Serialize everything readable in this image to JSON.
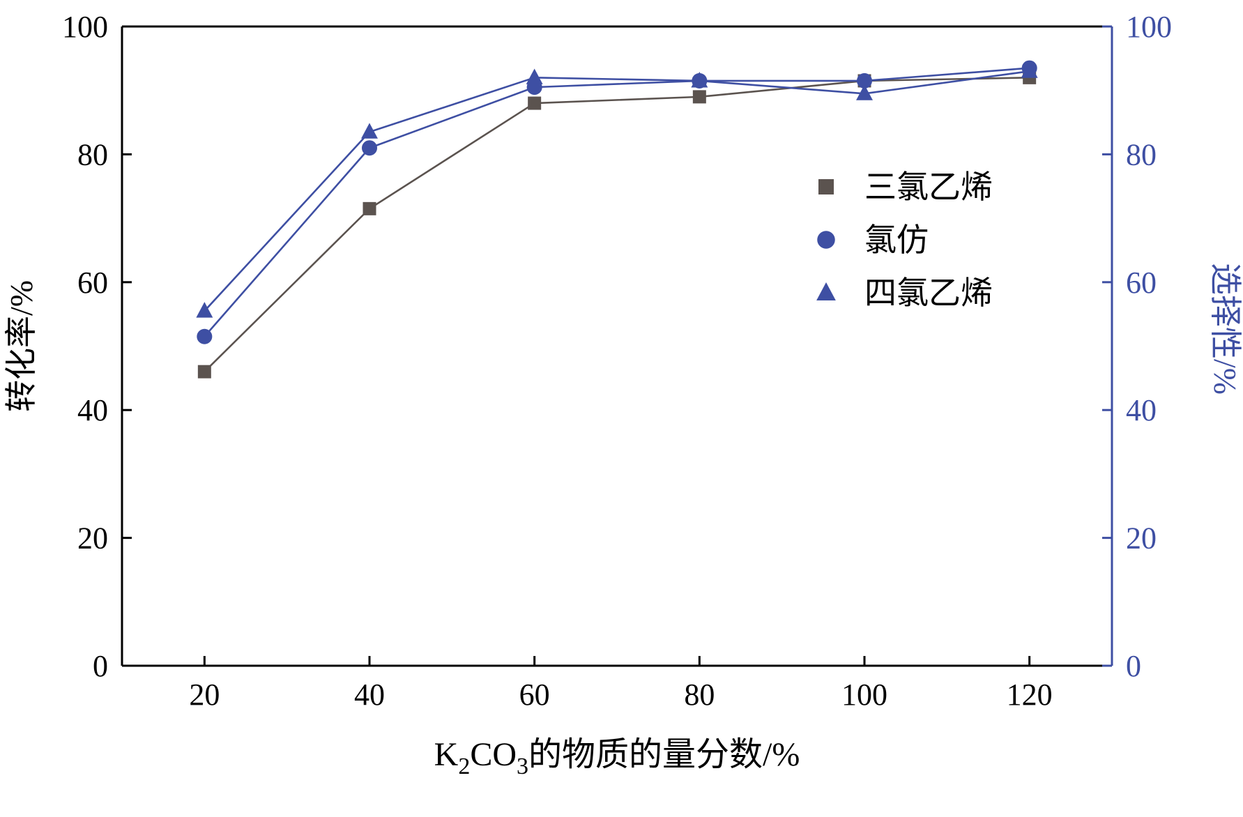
{
  "chart_data": {
    "type": "line",
    "title": "",
    "xlabel": "K₂CO₃的物质的量分数/%",
    "xlabel_parts": [
      {
        "t": "K",
        "sub": false
      },
      {
        "t": "2",
        "sub": true
      },
      {
        "t": "CO",
        "sub": false
      },
      {
        "t": "3",
        "sub": true
      },
      {
        "t": "的物质的量分数/%",
        "sub": false
      }
    ],
    "ylabel_left": "转化率/%",
    "ylabel_right": "选择性/%",
    "xlim": [
      10,
      130
    ],
    "ylim": [
      0,
      100
    ],
    "ylim_right": [
      0,
      100
    ],
    "xticks": [
      20,
      40,
      60,
      80,
      100,
      120
    ],
    "yticks": [
      0,
      20,
      40,
      60,
      80,
      100
    ],
    "yticks_right": [
      0,
      20,
      40,
      60,
      80,
      100
    ],
    "grid": false,
    "legend_position": "inside-upper-right",
    "x": [
      20,
      40,
      60,
      80,
      100,
      120
    ],
    "series": [
      {
        "name": "三氯乙烯",
        "marker": "square",
        "color": "#5b534f",
        "values": [
          46,
          71.5,
          88,
          89,
          91.5,
          92
        ]
      },
      {
        "name": "氯仿",
        "marker": "circle",
        "color": "#3e4fa3",
        "values": [
          51.5,
          81,
          90.5,
          91.5,
          91.5,
          93.5
        ]
      },
      {
        "name": "四氯乙烯",
        "marker": "triangle",
        "color": "#3e4fa3",
        "values": [
          55.5,
          83.5,
          92,
          91.5,
          89.5,
          93
        ]
      }
    ],
    "colors": {
      "left_axis": "#000000",
      "bottom_axis": "#000000",
      "top_axis": "#000000",
      "right_axis": "#3e4fa3",
      "right_tick_labels": "#3e4fa3",
      "legend_text": "#000000",
      "background": "#ffffff"
    }
  }
}
